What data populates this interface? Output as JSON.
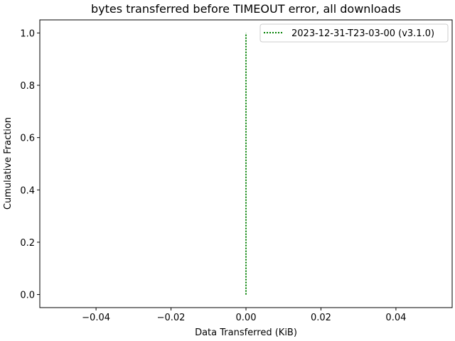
{
  "chart_data": {
    "type": "line",
    "title": "bytes transferred before TIMEOUT error, all downloads",
    "xlabel": "Data Transferred (KiB)",
    "ylabel": "Cumulative Fraction",
    "xlim": [
      -0.055,
      0.055
    ],
    "ylim": [
      -0.05,
      1.05
    ],
    "xticks": [
      -0.04,
      -0.02,
      0.0,
      0.02,
      0.04
    ],
    "xtick_labels": [
      "−0.04",
      "−0.02",
      "0.00",
      "0.02",
      "0.04"
    ],
    "yticks": [
      0.0,
      0.2,
      0.4,
      0.6,
      0.8,
      1.0
    ],
    "ytick_labels": [
      "0.0",
      "0.2",
      "0.4",
      "0.6",
      "0.8",
      "1.0"
    ],
    "grid": false,
    "legend_position": "top-right",
    "series": [
      {
        "name": "2023-12-31-T23-03-00 (v3.1.0)",
        "color": "#008000",
        "linestyle": "dotted",
        "x": [
          0.0,
          0.0
        ],
        "y": [
          0.0,
          1.0
        ]
      }
    ]
  }
}
